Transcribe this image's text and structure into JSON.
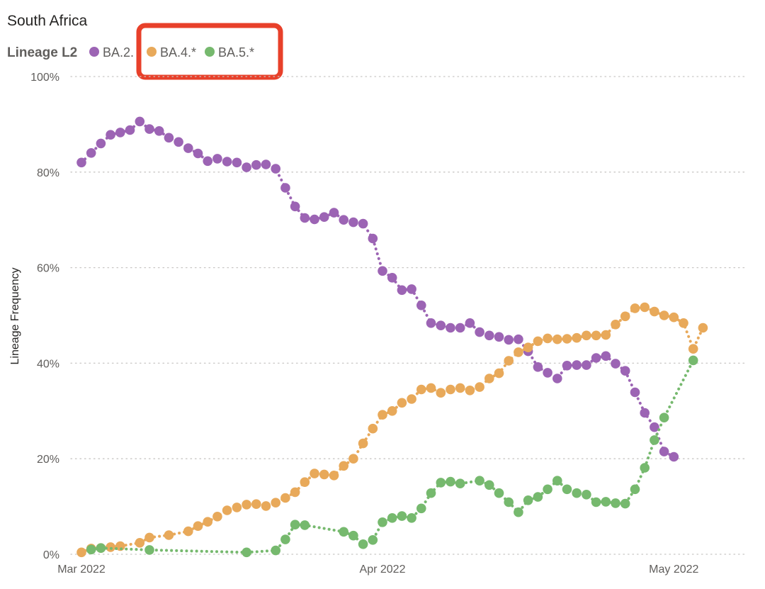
{
  "chart_data": {
    "type": "line",
    "title": "South Africa",
    "legend_title": "Lineage L2",
    "legend_placement": "top-left",
    "ylabel": "Lineage Frequency",
    "ylim": [
      0,
      100
    ],
    "y_ticks": [
      "0%",
      "20%",
      "40%",
      "60%",
      "80%",
      "100%"
    ],
    "x_range": [
      "2022-03-01",
      "2022-05-06"
    ],
    "x_ticks": [
      {
        "date": "2022-03-01",
        "label": "Mar 2022"
      },
      {
        "date": "2022-04-01",
        "label": "Apr 2022"
      },
      {
        "date": "2022-05-01",
        "label": "May 2022"
      }
    ],
    "grid": "horizontal dotted",
    "highlight_box": {
      "around": "legend entries BA.4.* and BA.5.*",
      "color": "#e8402a"
    },
    "series": [
      {
        "name": "BA.2.",
        "color": "#9c64b4",
        "points": [
          [
            "2022-03-01",
            82
          ],
          [
            "2022-03-02",
            84
          ],
          [
            "2022-03-03",
            86
          ],
          [
            "2022-03-04",
            87.8
          ],
          [
            "2022-03-05",
            88.3
          ],
          [
            "2022-03-06",
            88.8
          ],
          [
            "2022-03-07",
            90.6
          ],
          [
            "2022-03-08",
            89
          ],
          [
            "2022-03-09",
            88.6
          ],
          [
            "2022-03-10",
            87.2
          ],
          [
            "2022-03-11",
            86.3
          ],
          [
            "2022-03-12",
            85
          ],
          [
            "2022-03-13",
            83.9
          ],
          [
            "2022-03-14",
            82.3
          ],
          [
            "2022-03-15",
            82.8
          ],
          [
            "2022-03-16",
            82.2
          ],
          [
            "2022-03-17",
            82
          ],
          [
            "2022-03-18",
            81
          ],
          [
            "2022-03-19",
            81.5
          ],
          [
            "2022-03-20",
            81.6
          ],
          [
            "2022-03-21",
            80.7
          ],
          [
            "2022-03-22",
            76.7
          ],
          [
            "2022-03-23",
            72.8
          ],
          [
            "2022-03-24",
            70.4
          ],
          [
            "2022-03-25",
            70.1
          ],
          [
            "2022-03-26",
            70.6
          ],
          [
            "2022-03-27",
            71.5
          ],
          [
            "2022-03-28",
            70
          ],
          [
            "2022-03-29",
            69.5
          ],
          [
            "2022-03-30",
            69.2
          ],
          [
            "2022-03-31",
            66.1
          ],
          [
            "2022-04-01",
            59.3
          ],
          [
            "2022-04-02",
            57.9
          ],
          [
            "2022-04-03",
            55.3
          ],
          [
            "2022-04-04",
            55.5
          ],
          [
            "2022-04-05",
            52.1
          ],
          [
            "2022-04-06",
            48.4
          ],
          [
            "2022-04-07",
            47.9
          ],
          [
            "2022-04-08",
            47.4
          ],
          [
            "2022-04-09",
            47.4
          ],
          [
            "2022-04-10",
            48.4
          ],
          [
            "2022-04-11",
            46.5
          ],
          [
            "2022-04-12",
            45.8
          ],
          [
            "2022-04-13",
            45.5
          ],
          [
            "2022-04-14",
            44.9
          ],
          [
            "2022-04-15",
            45
          ],
          [
            "2022-04-16",
            42.5
          ],
          [
            "2022-04-17",
            39.2
          ],
          [
            "2022-04-18",
            38
          ],
          [
            "2022-04-19",
            36.8
          ],
          [
            "2022-04-20",
            39.5
          ],
          [
            "2022-04-21",
            39.6
          ],
          [
            "2022-04-22",
            39.6
          ],
          [
            "2022-04-23",
            41.1
          ],
          [
            "2022-04-24",
            41.5
          ],
          [
            "2022-04-25",
            39.9
          ],
          [
            "2022-04-26",
            38.4
          ],
          [
            "2022-04-27",
            33.9
          ],
          [
            "2022-04-28",
            29.6
          ],
          [
            "2022-04-29",
            26.6
          ],
          [
            "2022-04-30",
            21.5
          ],
          [
            "2022-05-01",
            20.4
          ]
        ]
      },
      {
        "name": "BA.4.*",
        "color": "#e8a95a",
        "points": [
          [
            "2022-03-01",
            0.4
          ],
          [
            "2022-03-02",
            1.2
          ],
          [
            "2022-03-03",
            1.3
          ],
          [
            "2022-03-04",
            1.5
          ],
          [
            "2022-03-05",
            1.7
          ],
          [
            "2022-03-07",
            2.4
          ],
          [
            "2022-03-08",
            3.5
          ],
          [
            "2022-03-10",
            4
          ],
          [
            "2022-03-12",
            4.8
          ],
          [
            "2022-03-13",
            5.9
          ],
          [
            "2022-03-14",
            6.8
          ],
          [
            "2022-03-15",
            7.9
          ],
          [
            "2022-03-16",
            9.2
          ],
          [
            "2022-03-17",
            9.8
          ],
          [
            "2022-03-18",
            10.4
          ],
          [
            "2022-03-19",
            10.5
          ],
          [
            "2022-03-20",
            10.1
          ],
          [
            "2022-03-21",
            10.8
          ],
          [
            "2022-03-22",
            11.8
          ],
          [
            "2022-03-23",
            13
          ],
          [
            "2022-03-24",
            15.1
          ],
          [
            "2022-03-25",
            16.9
          ],
          [
            "2022-03-26",
            16.7
          ],
          [
            "2022-03-27",
            16.5
          ],
          [
            "2022-03-28",
            18.5
          ],
          [
            "2022-03-29",
            20
          ],
          [
            "2022-03-30",
            23.2
          ],
          [
            "2022-03-31",
            26.3
          ],
          [
            "2022-04-01",
            29.2
          ],
          [
            "2022-04-02",
            30
          ],
          [
            "2022-04-03",
            31.7
          ],
          [
            "2022-04-04",
            32.5
          ],
          [
            "2022-04-05",
            34.5
          ],
          [
            "2022-04-06",
            34.8
          ],
          [
            "2022-04-07",
            33.8
          ],
          [
            "2022-04-08",
            34.5
          ],
          [
            "2022-04-09",
            34.8
          ],
          [
            "2022-04-10",
            34.3
          ],
          [
            "2022-04-11",
            35
          ],
          [
            "2022-04-12",
            36.8
          ],
          [
            "2022-04-13",
            37.9
          ],
          [
            "2022-04-14",
            40.5
          ],
          [
            "2022-04-15",
            42.3
          ],
          [
            "2022-04-16",
            43.3
          ],
          [
            "2022-04-17",
            44.6
          ],
          [
            "2022-04-18",
            45.2
          ],
          [
            "2022-04-19",
            45
          ],
          [
            "2022-04-20",
            45.1
          ],
          [
            "2022-04-21",
            45.3
          ],
          [
            "2022-04-22",
            45.8
          ],
          [
            "2022-04-23",
            45.8
          ],
          [
            "2022-04-24",
            45.9
          ],
          [
            "2022-04-25",
            48.1
          ],
          [
            "2022-04-26",
            49.8
          ],
          [
            "2022-04-27",
            51.5
          ],
          [
            "2022-04-28",
            51.7
          ],
          [
            "2022-04-29",
            50.8
          ],
          [
            "2022-04-30",
            50
          ],
          [
            "2022-05-01",
            49.6
          ],
          [
            "2022-05-02",
            48.4
          ],
          [
            "2022-05-03",
            43
          ],
          [
            "2022-05-04",
            47.4
          ]
        ]
      },
      {
        "name": "BA.5.*",
        "color": "#76b96e",
        "points": [
          [
            "2022-03-02",
            1
          ],
          [
            "2022-03-03",
            1.3
          ],
          [
            "2022-03-08",
            0.9
          ],
          [
            "2022-03-18",
            0.4
          ],
          [
            "2022-03-21",
            0.8
          ],
          [
            "2022-03-22",
            3.1
          ],
          [
            "2022-03-23",
            6.2
          ],
          [
            "2022-03-24",
            6.1
          ],
          [
            "2022-03-28",
            4.7
          ],
          [
            "2022-03-29",
            3.9
          ],
          [
            "2022-03-30",
            2.1
          ],
          [
            "2022-03-31",
            3
          ],
          [
            "2022-04-01",
            6.7
          ],
          [
            "2022-04-02",
            7.6
          ],
          [
            "2022-04-03",
            8
          ],
          [
            "2022-04-04",
            7.6
          ],
          [
            "2022-04-05",
            9.6
          ],
          [
            "2022-04-06",
            12.8
          ],
          [
            "2022-04-07",
            15
          ],
          [
            "2022-04-08",
            15.2
          ],
          [
            "2022-04-09",
            14.8
          ],
          [
            "2022-04-11",
            15.4
          ],
          [
            "2022-04-12",
            14.5
          ],
          [
            "2022-04-13",
            12.8
          ],
          [
            "2022-04-14",
            10.9
          ],
          [
            "2022-04-15",
            8.8
          ],
          [
            "2022-04-16",
            11.3
          ],
          [
            "2022-04-17",
            12
          ],
          [
            "2022-04-18",
            13.6
          ],
          [
            "2022-04-19",
            15.4
          ],
          [
            "2022-04-20",
            13.6
          ],
          [
            "2022-04-21",
            12.8
          ],
          [
            "2022-04-22",
            12.5
          ],
          [
            "2022-04-23",
            10.9
          ],
          [
            "2022-04-24",
            11
          ],
          [
            "2022-04-25",
            10.7
          ],
          [
            "2022-04-26",
            10.6
          ],
          [
            "2022-04-27",
            13.6
          ],
          [
            "2022-04-28",
            18.1
          ],
          [
            "2022-04-29",
            23.9
          ],
          [
            "2022-04-30",
            28.6
          ],
          [
            "2022-05-03",
            40.6
          ]
        ]
      }
    ]
  }
}
